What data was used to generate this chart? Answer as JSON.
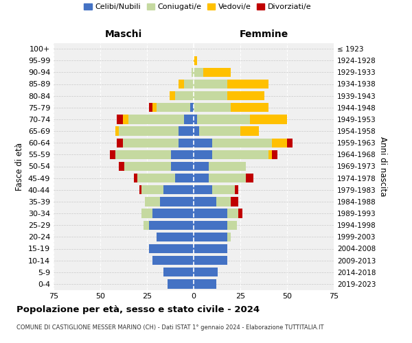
{
  "age_groups": [
    "0-4",
    "5-9",
    "10-14",
    "15-19",
    "20-24",
    "25-29",
    "30-34",
    "35-39",
    "40-44",
    "45-49",
    "50-54",
    "55-59",
    "60-64",
    "65-69",
    "70-74",
    "75-79",
    "80-84",
    "85-89",
    "90-94",
    "95-99",
    "100+"
  ],
  "birth_years": [
    "2019-2023",
    "2014-2018",
    "2009-2013",
    "2004-2008",
    "1999-2003",
    "1994-1998",
    "1989-1993",
    "1984-1988",
    "1979-1983",
    "1974-1978",
    "1969-1973",
    "1964-1968",
    "1959-1963",
    "1954-1958",
    "1949-1953",
    "1944-1948",
    "1939-1943",
    "1934-1938",
    "1929-1933",
    "1924-1928",
    "≤ 1923"
  ],
  "maschi": {
    "celibi": [
      14,
      16,
      22,
      24,
      20,
      24,
      22,
      18,
      16,
      10,
      12,
      12,
      8,
      8,
      5,
      2,
      0,
      0,
      0,
      0,
      0
    ],
    "coniugati": [
      0,
      0,
      0,
      0,
      0,
      3,
      6,
      8,
      12,
      20,
      25,
      30,
      30,
      32,
      30,
      18,
      10,
      5,
      1,
      0,
      0
    ],
    "vedovi": [
      0,
      0,
      0,
      0,
      0,
      0,
      0,
      0,
      0,
      0,
      0,
      0,
      0,
      2,
      3,
      2,
      3,
      3,
      0,
      0,
      0
    ],
    "divorziati": [
      0,
      0,
      0,
      0,
      0,
      0,
      0,
      0,
      1,
      2,
      3,
      3,
      3,
      0,
      3,
      2,
      0,
      0,
      0,
      0,
      0
    ]
  },
  "femmine": {
    "nubili": [
      12,
      13,
      18,
      18,
      18,
      18,
      18,
      12,
      10,
      8,
      8,
      10,
      10,
      3,
      2,
      0,
      0,
      0,
      0,
      0,
      0
    ],
    "coniugate": [
      0,
      0,
      0,
      0,
      2,
      5,
      6,
      8,
      12,
      20,
      20,
      30,
      32,
      22,
      28,
      20,
      18,
      18,
      5,
      0,
      0
    ],
    "vedove": [
      0,
      0,
      0,
      0,
      0,
      0,
      0,
      0,
      0,
      0,
      0,
      2,
      8,
      10,
      20,
      20,
      20,
      22,
      15,
      2,
      0
    ],
    "divorziate": [
      0,
      0,
      0,
      0,
      0,
      0,
      2,
      4,
      2,
      4,
      0,
      3,
      3,
      0,
      0,
      0,
      0,
      0,
      0,
      0,
      0
    ]
  },
  "colors": {
    "celibi": "#4472c4",
    "coniugati": "#c5d9a0",
    "vedovi": "#ffc000",
    "divorziati": "#c00000"
  },
  "xlim": 75,
  "title": "Popolazione per età, sesso e stato civile - 2024",
  "subtitle": "COMUNE DI CASTIGLIONE MESSER MARINO (CH) - Dati ISTAT 1° gennaio 2024 - Elaborazione TUTTITALIA.IT",
  "xlabel_left": "Maschi",
  "xlabel_right": "Femmine",
  "ylabel_left": "Fasce di età",
  "ylabel_right": "Anni di nascita",
  "bg_color": "#ffffff",
  "plot_bg": "#f0f0f0"
}
